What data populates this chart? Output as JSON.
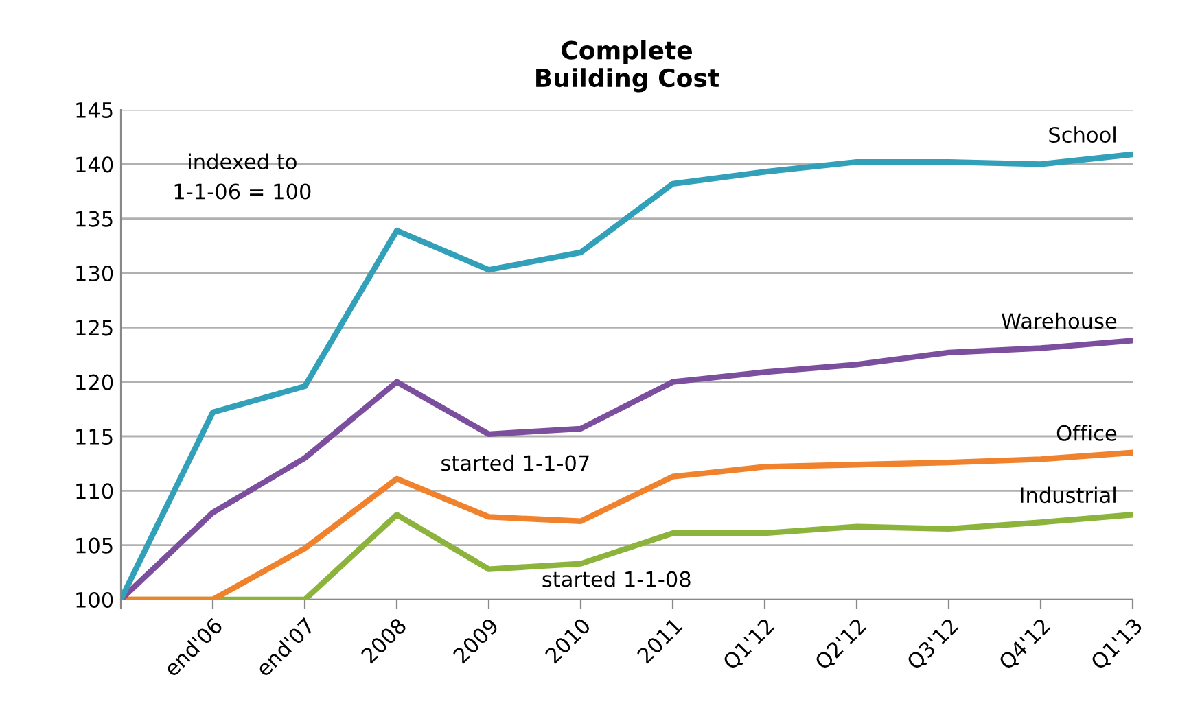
{
  "chart_data": {
    "type": "line",
    "title": "Complete\nBuilding Cost",
    "categories": [
      null,
      "end'06",
      "end'07",
      "2008",
      "2009",
      "2010",
      "2011",
      "Q1'12",
      "Q2'12",
      "Q3'12",
      "Q4'12",
      "Q1'13"
    ],
    "series": [
      {
        "name": "School",
        "color": "#31a0b8",
        "values": [
          100,
          117.2,
          119.6,
          133.9,
          130.3,
          131.9,
          138.2,
          139.3,
          140.2,
          140.2,
          140.0,
          140.9
        ]
      },
      {
        "name": "Warehouse",
        "color": "#7b4f9e",
        "values": [
          100,
          108.0,
          113.0,
          120.0,
          115.2,
          115.7,
          120.0,
          120.9,
          121.6,
          122.7,
          123.1,
          123.8
        ]
      },
      {
        "name": "Office",
        "color": "#f0822d",
        "values": [
          100,
          100,
          104.7,
          111.1,
          107.6,
          107.2,
          111.3,
          112.2,
          112.4,
          112.6,
          112.9,
          113.5
        ]
      },
      {
        "name": "Industrial",
        "color": "#8cb43c",
        "values": [
          100,
          100,
          100,
          107.8,
          102.8,
          103.3,
          106.1,
          106.1,
          106.7,
          106.5,
          107.1,
          107.8
        ]
      }
    ],
    "ylim": [
      100,
      145
    ],
    "yticks": [
      100,
      105,
      110,
      115,
      120,
      125,
      130,
      135,
      140,
      145
    ],
    "grid": "y",
    "legend": false,
    "marker": "none",
    "line_style": "solid",
    "annotations": [
      "indexed to\n1-1-06 = 100",
      "started 1-1-07",
      "started 1-1-08"
    ]
  }
}
